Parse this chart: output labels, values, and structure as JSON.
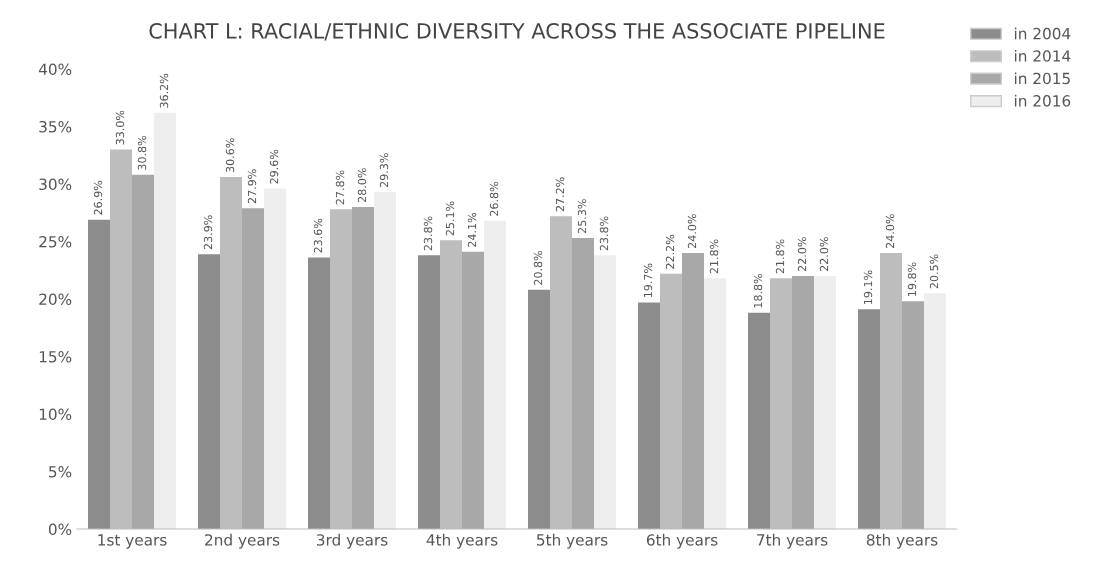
{
  "chart_data": {
    "type": "bar",
    "title": "CHART L: RACIAL/ETHNIC DIVERSITY ACROSS THE ASSOCIATE PIPELINE",
    "categories": [
      "1st years",
      "2nd years",
      "3rd years",
      "4th years",
      "5th years",
      "6th years",
      "7th years",
      "8th years"
    ],
    "series": [
      {
        "name": "in 2004",
        "color": "#8c8c8c",
        "values": [
          26.9,
          23.9,
          23.6,
          23.8,
          20.8,
          19.7,
          18.8,
          19.1
        ],
        "value_labels": [
          "26.9%",
          "23.9%",
          "23.6%",
          "23.8%",
          "20.8%",
          "19.7%",
          "18.8%",
          "19.1%"
        ]
      },
      {
        "name": "in 2014",
        "color": "#bdbdbd",
        "values": [
          33.0,
          30.6,
          27.8,
          25.1,
          27.2,
          22.2,
          21.8,
          24.0
        ],
        "value_labels": [
          "33.0%",
          "30.6%",
          "27.8%",
          "25.1%",
          "27.2%",
          "22.2%",
          "21.8%",
          "24.0%"
        ]
      },
      {
        "name": "in 2015",
        "color": "#a8a8a8",
        "values": [
          30.8,
          27.9,
          28.0,
          24.1,
          25.3,
          24.0,
          22.0,
          19.8
        ],
        "value_labels": [
          "30.8%",
          "27.9%",
          "28.0%",
          "24.1%",
          "25.3%",
          "24.0%",
          "22.0%",
          "19.8%"
        ]
      },
      {
        "name": "in 2016",
        "color": "#eeeeee",
        "values": [
          36.2,
          29.6,
          29.3,
          26.8,
          23.8,
          21.8,
          22.0,
          20.5
        ],
        "value_labels": [
          "36.2%",
          "29.6%",
          "29.3%",
          "26.8%",
          "23.8%",
          "21.8%",
          "22.0%",
          "20.5%"
        ]
      }
    ],
    "ylim": [
      0,
      40
    ],
    "yticks": [
      {
        "value": 0,
        "label": "0%"
      },
      {
        "value": 5,
        "label": "5%"
      },
      {
        "value": 10,
        "label": "10%"
      },
      {
        "value": 15,
        "label": "15%"
      },
      {
        "value": 20,
        "label": "20%"
      },
      {
        "value": 25,
        "label": "25%"
      },
      {
        "value": 30,
        "label": "30%"
      },
      {
        "value": 35,
        "label": "35%"
      },
      {
        "value": 40,
        "label": "40%"
      }
    ],
    "grid": false,
    "legend": "top right"
  }
}
